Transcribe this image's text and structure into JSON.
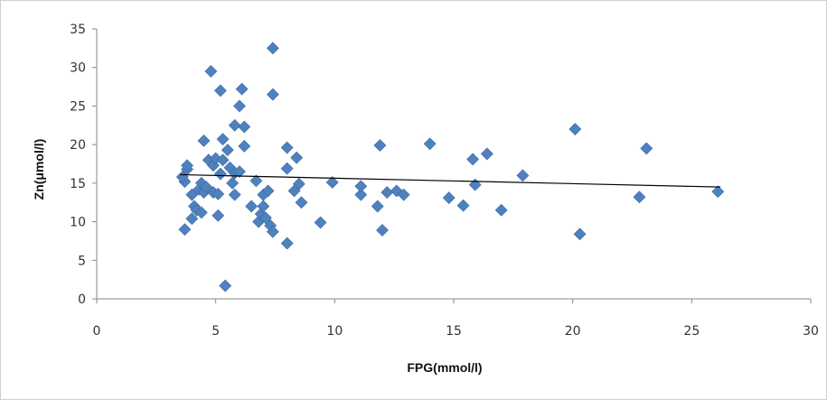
{
  "chart_data": {
    "type": "scatter",
    "title": "",
    "xlabel": "FPG(mmol/l)",
    "ylabel": "Zn(μmol/l)",
    "xlim": [
      0,
      30
    ],
    "ylim": [
      0,
      35
    ],
    "xticks": [
      0,
      5,
      10,
      15,
      20,
      25,
      30
    ],
    "yticks": [
      0,
      5,
      10,
      15,
      20,
      25,
      30,
      35
    ],
    "grid": false,
    "legend": "none",
    "marker": "diamond",
    "marker_color": "#4F81BD",
    "trendline": {
      "type": "linear",
      "x": [
        3.5,
        26.2
      ],
      "y": [
        16.1,
        14.5
      ],
      "color": "#000000"
    },
    "series": [
      {
        "points": [
          [
            3.7,
            9.0
          ],
          [
            3.7,
            15.2
          ],
          [
            3.6,
            15.8
          ],
          [
            3.8,
            16.8
          ],
          [
            3.8,
            17.3
          ],
          [
            4.0,
            10.4
          ],
          [
            4.0,
            13.5
          ],
          [
            4.1,
            12.0
          ],
          [
            4.2,
            11.5
          ],
          [
            4.3,
            14.2
          ],
          [
            4.4,
            11.2
          ],
          [
            4.4,
            15.0
          ],
          [
            4.5,
            13.8
          ],
          [
            4.6,
            14.5
          ],
          [
            4.5,
            20.5
          ],
          [
            4.7,
            18.0
          ],
          [
            4.8,
            29.5
          ],
          [
            4.9,
            13.8
          ],
          [
            4.9,
            17.3
          ],
          [
            5.0,
            18.2
          ],
          [
            5.1,
            13.6
          ],
          [
            5.1,
            10.8
          ],
          [
            5.2,
            16.2
          ],
          [
            5.2,
            27.0
          ],
          [
            5.3,
            20.7
          ],
          [
            5.3,
            18.0
          ],
          [
            5.4,
            1.7
          ],
          [
            5.5,
            19.3
          ],
          [
            5.6,
            17.0
          ],
          [
            5.7,
            15.0
          ],
          [
            5.8,
            13.5
          ],
          [
            5.8,
            16.3
          ],
          [
            5.8,
            22.5
          ],
          [
            6.0,
            16.5
          ],
          [
            6.0,
            25.0
          ],
          [
            6.1,
            27.2
          ],
          [
            6.2,
            19.8
          ],
          [
            6.2,
            22.3
          ],
          [
            6.5,
            12.0
          ],
          [
            6.7,
            15.3
          ],
          [
            6.8,
            10.0
          ],
          [
            6.9,
            11.0
          ],
          [
            7.0,
            12.0
          ],
          [
            7.0,
            13.5
          ],
          [
            7.1,
            10.5
          ],
          [
            7.2,
            14.0
          ],
          [
            7.3,
            9.5
          ],
          [
            7.4,
            8.7
          ],
          [
            7.4,
            32.5
          ],
          [
            7.4,
            26.5
          ],
          [
            8.0,
            7.2
          ],
          [
            8.0,
            16.9
          ],
          [
            8.0,
            19.6
          ],
          [
            8.3,
            14.0
          ],
          [
            8.4,
            18.3
          ],
          [
            8.5,
            14.9
          ],
          [
            8.6,
            12.5
          ],
          [
            9.4,
            9.9
          ],
          [
            9.9,
            15.1
          ],
          [
            11.1,
            13.5
          ],
          [
            11.1,
            14.6
          ],
          [
            11.8,
            12.0
          ],
          [
            11.9,
            19.9
          ],
          [
            12.0,
            8.9
          ],
          [
            12.2,
            13.8
          ],
          [
            12.6,
            14.0
          ],
          [
            12.9,
            13.5
          ],
          [
            14.0,
            20.1
          ],
          [
            14.8,
            13.1
          ],
          [
            15.4,
            12.1
          ],
          [
            15.8,
            18.1
          ],
          [
            15.9,
            14.8
          ],
          [
            16.4,
            18.8
          ],
          [
            17.0,
            11.5
          ],
          [
            17.9,
            16.0
          ],
          [
            20.1,
            22.0
          ],
          [
            20.3,
            8.4
          ],
          [
            22.8,
            13.2
          ],
          [
            23.1,
            19.5
          ],
          [
            26.1,
            13.9
          ]
        ]
      }
    ]
  }
}
